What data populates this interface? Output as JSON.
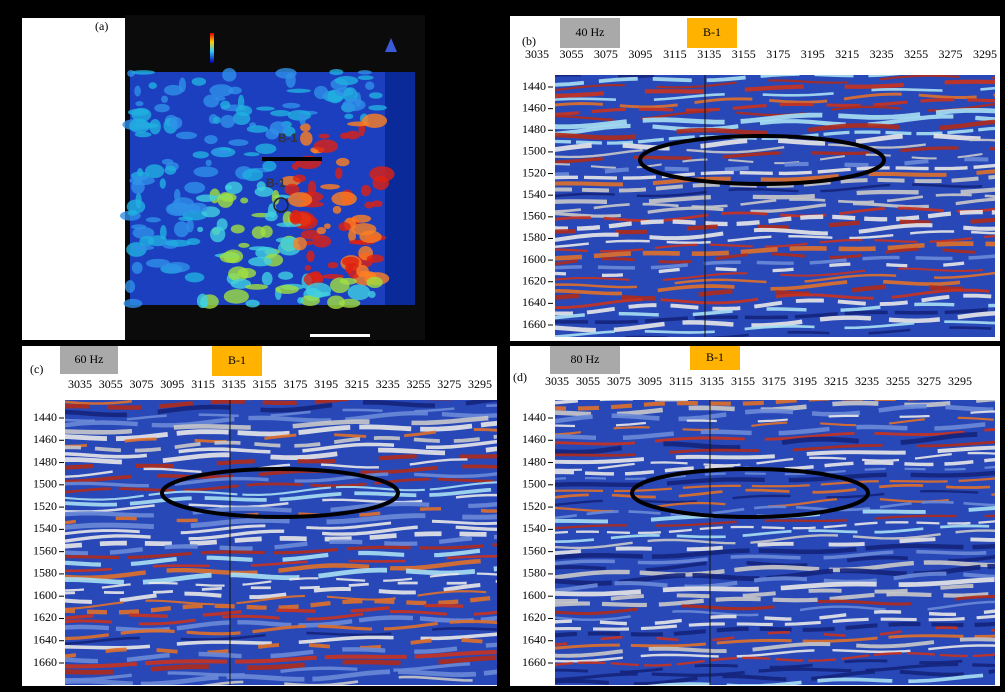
{
  "panels": {
    "a": {
      "label": "(a)",
      "map_labels": [
        "B-1",
        "B-1"
      ]
    },
    "b": {
      "label": "(b)",
      "frequency": "40 Hz",
      "well": "B-1",
      "x_labels": [
        3035,
        3055,
        3075,
        3095,
        3115,
        3135,
        3155,
        3175,
        3195,
        3215,
        3235,
        3255,
        3275,
        3295
      ],
      "y_labels": [
        1440,
        1460,
        1480,
        1500,
        1520,
        1540,
        1560,
        1580,
        1600,
        1620,
        1640,
        1660
      ]
    },
    "c": {
      "label": "(c)",
      "frequency": "60 Hz",
      "well": "B-1",
      "x_labels": [
        3035,
        3055,
        3075,
        3095,
        3115,
        3135,
        3155,
        3175,
        3195,
        3215,
        3235,
        3255,
        3275,
        3295
      ],
      "y_labels": [
        1440,
        1460,
        1480,
        1500,
        1520,
        1540,
        1560,
        1580,
        1600,
        1620,
        1640,
        1660
      ]
    },
    "d": {
      "label": "(d)",
      "frequency": "80 Hz",
      "well": "B-1",
      "x_labels": [
        3035,
        3055,
        3075,
        3095,
        3115,
        3135,
        3155,
        3175,
        3195,
        3215,
        3235,
        3255,
        3275,
        3295
      ],
      "y_labels": [
        1440,
        1460,
        1480,
        1500,
        1520,
        1540,
        1560,
        1580,
        1600,
        1620,
        1640,
        1660
      ]
    }
  }
}
